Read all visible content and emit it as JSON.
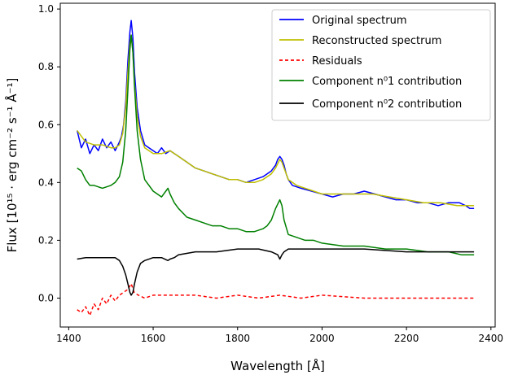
{
  "chart_data": {
    "type": "line",
    "xlabel": "Wavelength [Å]",
    "ylabel": "Flux [10¹⁵ · erg cm⁻² s⁻¹ Å⁻¹]",
    "xlim": [
      1380,
      2410
    ],
    "ylim": [
      -0.1,
      1.02
    ],
    "xticks": [
      1400,
      1600,
      1800,
      2000,
      2200,
      2400
    ],
    "yticks": [
      0.0,
      0.2,
      0.4,
      0.6,
      0.8,
      1.0
    ],
    "xtick_labels": [
      "1400",
      "1600",
      "1800",
      "2000",
      "2200",
      "2400"
    ],
    "ytick_labels": [
      "0.0",
      "0.2",
      "0.4",
      "0.6",
      "0.8",
      "1.0"
    ],
    "grid": false,
    "legend_position": "top-right",
    "series": [
      {
        "name": "Original spectrum",
        "color": "#0000ff",
        "dash": "solid",
        "x": [
          1420,
          1430,
          1440,
          1450,
          1460,
          1470,
          1480,
          1490,
          1500,
          1510,
          1520,
          1525,
          1530,
          1535,
          1540,
          1545,
          1548,
          1552,
          1556,
          1562,
          1570,
          1580,
          1590,
          1600,
          1610,
          1620,
          1630,
          1640,
          1650,
          1660,
          1680,
          1700,
          1720,
          1740,
          1760,
          1780,
          1800,
          1820,
          1840,
          1860,
          1870,
          1880,
          1890,
          1895,
          1900,
          1905,
          1910,
          1915,
          1920,
          1930,
          1950,
          1975,
          2000,
          2025,
          2050,
          2075,
          2100,
          2125,
          2150,
          2175,
          2200,
          2225,
          2250,
          2275,
          2300,
          2325,
          2340,
          2350,
          2360
        ],
        "values": [
          0.58,
          0.52,
          0.55,
          0.5,
          0.53,
          0.51,
          0.55,
          0.52,
          0.54,
          0.51,
          0.54,
          0.56,
          0.6,
          0.68,
          0.82,
          0.92,
          0.96,
          0.9,
          0.78,
          0.66,
          0.58,
          0.53,
          0.52,
          0.51,
          0.5,
          0.52,
          0.5,
          0.51,
          0.5,
          0.49,
          0.47,
          0.45,
          0.44,
          0.43,
          0.42,
          0.41,
          0.41,
          0.4,
          0.41,
          0.42,
          0.43,
          0.44,
          0.46,
          0.48,
          0.49,
          0.48,
          0.46,
          0.43,
          0.41,
          0.39,
          0.38,
          0.37,
          0.36,
          0.35,
          0.36,
          0.36,
          0.37,
          0.36,
          0.35,
          0.34,
          0.34,
          0.33,
          0.33,
          0.32,
          0.33,
          0.33,
          0.32,
          0.31,
          0.31
        ]
      },
      {
        "name": "Reconstructed spectrum",
        "color": "#bfbf00",
        "dash": "solid",
        "x": [
          1420,
          1440,
          1460,
          1480,
          1500,
          1510,
          1520,
          1528,
          1535,
          1540,
          1545,
          1548,
          1552,
          1556,
          1562,
          1570,
          1580,
          1600,
          1620,
          1640,
          1660,
          1680,
          1700,
          1720,
          1740,
          1760,
          1780,
          1800,
          1820,
          1840,
          1860,
          1880,
          1890,
          1900,
          1905,
          1910,
          1920,
          1940,
          1960,
          2000,
          2040,
          2080,
          2120,
          2160,
          2200,
          2240,
          2280,
          2320,
          2360
        ],
        "values": [
          0.58,
          0.54,
          0.53,
          0.53,
          0.52,
          0.52,
          0.53,
          0.57,
          0.66,
          0.78,
          0.88,
          0.91,
          0.85,
          0.74,
          0.63,
          0.56,
          0.52,
          0.5,
          0.5,
          0.51,
          0.49,
          0.47,
          0.45,
          0.44,
          0.43,
          0.42,
          0.41,
          0.41,
          0.4,
          0.4,
          0.41,
          0.43,
          0.45,
          0.48,
          0.47,
          0.45,
          0.41,
          0.39,
          0.38,
          0.36,
          0.36,
          0.36,
          0.36,
          0.35,
          0.34,
          0.33,
          0.33,
          0.32,
          0.32
        ]
      },
      {
        "name": "Residuals",
        "color": "#ff0000",
        "dash": "dashed",
        "x": [
          1420,
          1430,
          1440,
          1450,
          1460,
          1470,
          1480,
          1490,
          1500,
          1510,
          1520,
          1530,
          1540,
          1548,
          1555,
          1565,
          1580,
          1600,
          1650,
          1700,
          1750,
          1800,
          1850,
          1900,
          1950,
          2000,
          2100,
          2200,
          2300,
          2360
        ],
        "values": [
          -0.04,
          -0.05,
          -0.03,
          -0.06,
          -0.02,
          -0.04,
          0.0,
          -0.02,
          0.01,
          -0.01,
          0.01,
          0.02,
          0.03,
          0.05,
          0.02,
          0.01,
          0.0,
          0.01,
          0.01,
          0.01,
          0.0,
          0.01,
          0.0,
          0.01,
          0.0,
          0.01,
          0.0,
          0.0,
          0.0,
          0.0
        ]
      },
      {
        "name": "Component n⁰1 contribution",
        "color": "#008000",
        "dash": "solid",
        "x": [
          1420,
          1430,
          1440,
          1450,
          1460,
          1480,
          1500,
          1510,
          1520,
          1528,
          1535,
          1540,
          1545,
          1548,
          1552,
          1556,
          1562,
          1570,
          1580,
          1600,
          1620,
          1630,
          1635,
          1640,
          1650,
          1660,
          1680,
          1700,
          1720,
          1740,
          1760,
          1780,
          1800,
          1820,
          1840,
          1860,
          1870,
          1880,
          1890,
          1900,
          1905,
          1910,
          1920,
          1940,
          1960,
          1980,
          2000,
          2050,
          2100,
          2150,
          2200,
          2250,
          2300,
          2330,
          2360
        ],
        "values": [
          0.45,
          0.44,
          0.41,
          0.39,
          0.39,
          0.38,
          0.39,
          0.4,
          0.42,
          0.47,
          0.58,
          0.72,
          0.86,
          0.91,
          0.85,
          0.73,
          0.58,
          0.48,
          0.41,
          0.37,
          0.35,
          0.37,
          0.38,
          0.36,
          0.33,
          0.31,
          0.28,
          0.27,
          0.26,
          0.25,
          0.25,
          0.24,
          0.24,
          0.23,
          0.23,
          0.24,
          0.25,
          0.27,
          0.31,
          0.34,
          0.32,
          0.27,
          0.22,
          0.21,
          0.2,
          0.2,
          0.19,
          0.18,
          0.18,
          0.17,
          0.17,
          0.16,
          0.16,
          0.15,
          0.15
        ]
      },
      {
        "name": "Component n⁰2 contribution",
        "color": "#000000",
        "dash": "solid",
        "x": [
          1420,
          1440,
          1460,
          1480,
          1500,
          1510,
          1520,
          1528,
          1535,
          1540,
          1545,
          1548,
          1552,
          1556,
          1562,
          1570,
          1580,
          1600,
          1620,
          1635,
          1640,
          1650,
          1660,
          1700,
          1750,
          1800,
          1850,
          1880,
          1895,
          1900,
          1905,
          1910,
          1920,
          1950,
          2000,
          2100,
          2200,
          2300,
          2360
        ],
        "values": [
          0.135,
          0.14,
          0.14,
          0.14,
          0.14,
          0.14,
          0.13,
          0.11,
          0.08,
          0.05,
          0.02,
          0.01,
          0.02,
          0.05,
          0.09,
          0.12,
          0.13,
          0.14,
          0.14,
          0.13,
          0.135,
          0.14,
          0.15,
          0.16,
          0.16,
          0.17,
          0.17,
          0.16,
          0.15,
          0.135,
          0.15,
          0.16,
          0.17,
          0.17,
          0.17,
          0.17,
          0.16,
          0.16,
          0.16
        ]
      }
    ]
  }
}
